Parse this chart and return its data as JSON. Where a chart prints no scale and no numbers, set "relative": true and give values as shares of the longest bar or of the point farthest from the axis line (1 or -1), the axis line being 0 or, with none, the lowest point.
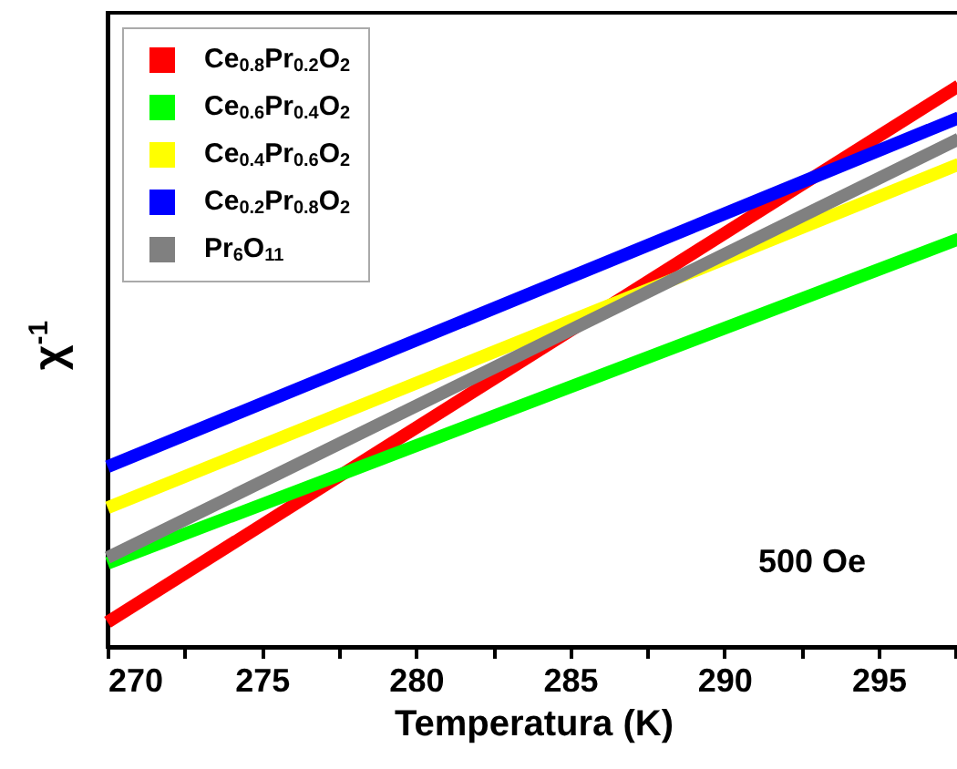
{
  "chart_data": {
    "type": "line",
    "relative": true,
    "xlabel": "Temperatura (K)",
    "ylabel": "χ$^{-1}$",
    "annotations": [
      "500 Oe"
    ],
    "legend": "top left",
    "grid": false,
    "marker": "none",
    "line_style": "solid",
    "xlim": [
      270,
      297.6
    ],
    "xticks": [
      270,
      {
        "value": 272.5,
        "label": null
      },
      275,
      {
        "value": 277.5,
        "label": null
      },
      280,
      {
        "value": 282.5,
        "label": null
      },
      285,
      {
        "value": 287.5,
        "label": null
      },
      290,
      {
        "value": 292.5,
        "label": null
      },
      295,
      {
        "value": 297.5,
        "label": null
      }
    ],
    "x": [
      270,
      297.6
    ],
    "series": [
      {
        "name": "Ce$_{0.8}$Pr$_{0.2}$O$_{2}$",
        "color": "#ff0000",
        "values": [
          0.044,
          1
        ]
      },
      {
        "name": "Ce$_{0.6}$Pr$_{0.4}$O$_{2}$",
        "color": "#00ff00",
        "values": [
          0.149,
          0.727
        ]
      },
      {
        "name": "Ce$_{0.4}$Pr$_{0.6}$O$_{2}$",
        "color": "#ffff00",
        "values": [
          0.248,
          0.86
        ]
      },
      {
        "name": "Ce$_{0.2}$Pr$_{0.8}$O$_{2}$",
        "color": "#0000ff",
        "values": [
          0.321,
          0.943
        ]
      },
      {
        "name": "Pr$_{6}$O$_{11}$",
        "color": "#808080",
        "values": [
          0.159,
          0.905
        ]
      }
    ]
  }
}
